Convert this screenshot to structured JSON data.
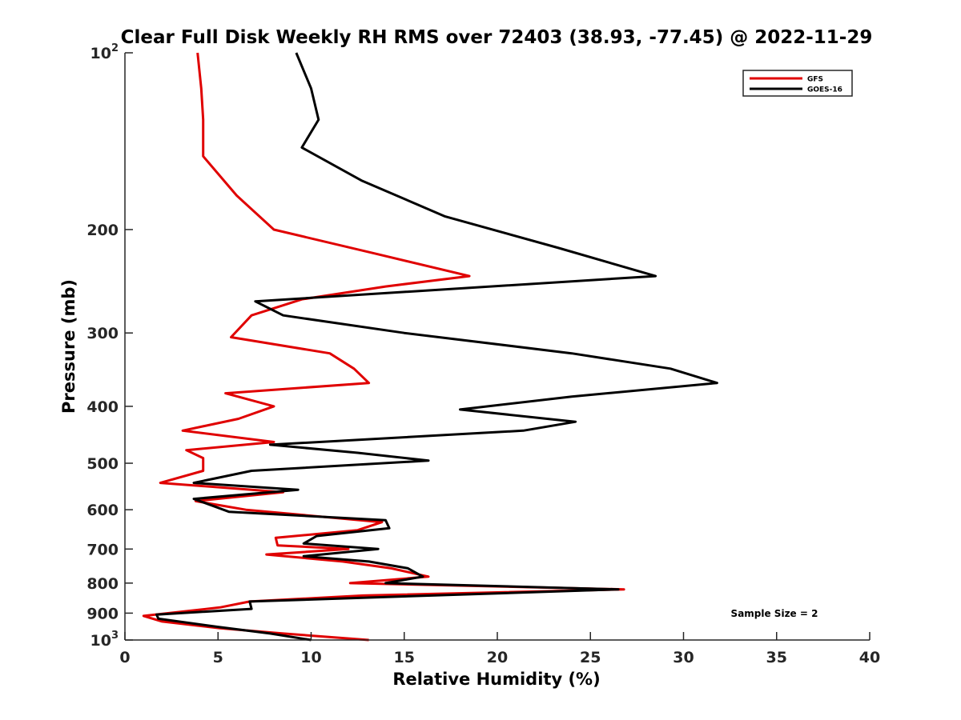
{
  "chart_data": {
    "type": "line",
    "title": "Clear Full Disk Weekly RH RMS over 72403 (38.93, -77.45) @ 2022-11-29",
    "xlabel": "Relative Humidity (%)",
    "ylabel": "Pressure (mb)",
    "xlim": [
      0,
      40
    ],
    "ylim": [
      1000,
      100
    ],
    "yscale": "log",
    "x_ticks": [
      "0",
      "5",
      "10",
      "15",
      "20",
      "25",
      "30",
      "35",
      "40"
    ],
    "y_ticks": [
      {
        "label": "10",
        "exp": "2",
        "value": 100
      },
      {
        "label": "200",
        "value": 200
      },
      {
        "label": "300",
        "value": 300
      },
      {
        "label": "400",
        "value": 400
      },
      {
        "label": "500",
        "value": 500
      },
      {
        "label": "600",
        "value": 600
      },
      {
        "label": "700",
        "value": 700
      },
      {
        "label": "800",
        "value": 800
      },
      {
        "label": "900",
        "value": 900
      },
      {
        "label": "10",
        "exp": "3",
        "value": 1000
      }
    ],
    "legend_position": "top-right",
    "grid": false,
    "annotation": "Sample Size = 2",
    "series": [
      {
        "name": "GFS",
        "color": "#e00000",
        "points": [
          [
            3.9,
            100
          ],
          [
            4.1,
            115
          ],
          [
            4.2,
            130
          ],
          [
            4.2,
            150
          ],
          [
            6.0,
            175
          ],
          [
            8.0,
            200
          ],
          [
            13.5,
            220
          ],
          [
            18.5,
            240
          ],
          [
            14.0,
            250
          ],
          [
            9.5,
            263
          ],
          [
            6.8,
            280
          ],
          [
            5.7,
            305
          ],
          [
            11.0,
            325
          ],
          [
            12.3,
            345
          ],
          [
            13.1,
            365
          ],
          [
            5.4,
            380
          ],
          [
            8.0,
            400
          ],
          [
            6.1,
            420
          ],
          [
            3.1,
            440
          ],
          [
            8.0,
            460
          ],
          [
            3.3,
            475
          ],
          [
            4.2,
            490
          ],
          [
            4.2,
            515
          ],
          [
            1.9,
            540
          ],
          [
            8.5,
            560
          ],
          [
            3.8,
            580
          ],
          [
            6.5,
            600
          ],
          [
            13.8,
            630
          ],
          [
            12.5,
            650
          ],
          [
            8.1,
            670
          ],
          [
            8.2,
            690
          ],
          [
            12.0,
            700
          ],
          [
            7.6,
            715
          ],
          [
            11.7,
            735
          ],
          [
            14.3,
            755
          ],
          [
            16.3,
            780
          ],
          [
            12.1,
            800
          ],
          [
            26.8,
            820
          ],
          [
            12.8,
            840
          ],
          [
            6.7,
            860
          ],
          [
            5.1,
            880
          ],
          [
            1.0,
            910
          ],
          [
            2.0,
            930
          ],
          [
            5.1,
            955
          ],
          [
            8.5,
            975
          ],
          [
            13.1,
            1000
          ]
        ]
      },
      {
        "name": "GOES-16",
        "color": "#000000",
        "points": [
          [
            9.2,
            100
          ],
          [
            10.0,
            115
          ],
          [
            10.4,
            130
          ],
          [
            9.5,
            145
          ],
          [
            12.7,
            165
          ],
          [
            17.2,
            190
          ],
          [
            23.3,
            215
          ],
          [
            28.5,
            240
          ],
          [
            7.0,
            265
          ],
          [
            8.5,
            280
          ],
          [
            15.0,
            300
          ],
          [
            24.0,
            325
          ],
          [
            29.3,
            345
          ],
          [
            31.8,
            365
          ],
          [
            24.0,
            385
          ],
          [
            18.0,
            405
          ],
          [
            24.2,
            425
          ],
          [
            21.4,
            440
          ],
          [
            7.8,
            465
          ],
          [
            12.5,
            480
          ],
          [
            16.3,
            495
          ],
          [
            6.8,
            515
          ],
          [
            3.7,
            540
          ],
          [
            9.3,
            555
          ],
          [
            3.7,
            575
          ],
          [
            5.6,
            605
          ],
          [
            14.0,
            625
          ],
          [
            14.2,
            645
          ],
          [
            10.3,
            665
          ],
          [
            9.6,
            685
          ],
          [
            13.6,
            700
          ],
          [
            9.6,
            720
          ],
          [
            13.1,
            735
          ],
          [
            15.2,
            755
          ],
          [
            16.0,
            780
          ],
          [
            14.0,
            800
          ],
          [
            26.5,
            820
          ],
          [
            6.7,
            860
          ],
          [
            6.8,
            885
          ],
          [
            1.7,
            905
          ],
          [
            1.8,
            920
          ],
          [
            5.0,
            950
          ],
          [
            7.8,
            975
          ],
          [
            10.0,
            1000
          ]
        ]
      }
    ]
  }
}
